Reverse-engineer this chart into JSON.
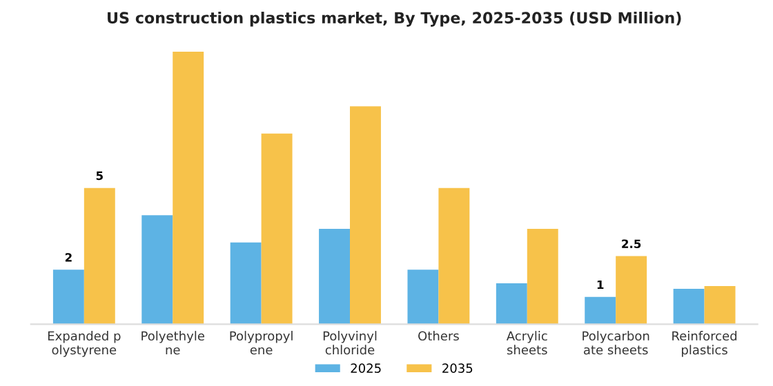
{
  "chart_data": {
    "type": "bar",
    "title": "US construction plastics market, By Type, 2025-2035 (USD Million)",
    "categories": [
      "Expanded p\nolystyrene",
      "Polyethyle\nne",
      "Polypropyl\nene",
      "Polyvinyl\nchloride",
      "Others",
      "Acrylic\nsheets",
      "Polycarbon\nate sheets",
      "Reinforced\nplastics"
    ],
    "series": [
      {
        "name": "2025",
        "color": "#5db3e4",
        "values": [
          2,
          4,
          3,
          3.5,
          2,
          1.5,
          1,
          1.3
        ],
        "value_labels": [
          "2",
          null,
          null,
          null,
          null,
          null,
          "1",
          null
        ]
      },
      {
        "name": "2035",
        "color": "#f7c24a",
        "values": [
          5,
          10,
          7,
          8,
          5,
          3.5,
          2.5,
          1.4
        ],
        "value_labels": [
          "5",
          null,
          null,
          null,
          null,
          null,
          "2.5",
          null
        ]
      }
    ],
    "legend": "bottom",
    "grid": false,
    "tick_labels": "x"
  }
}
